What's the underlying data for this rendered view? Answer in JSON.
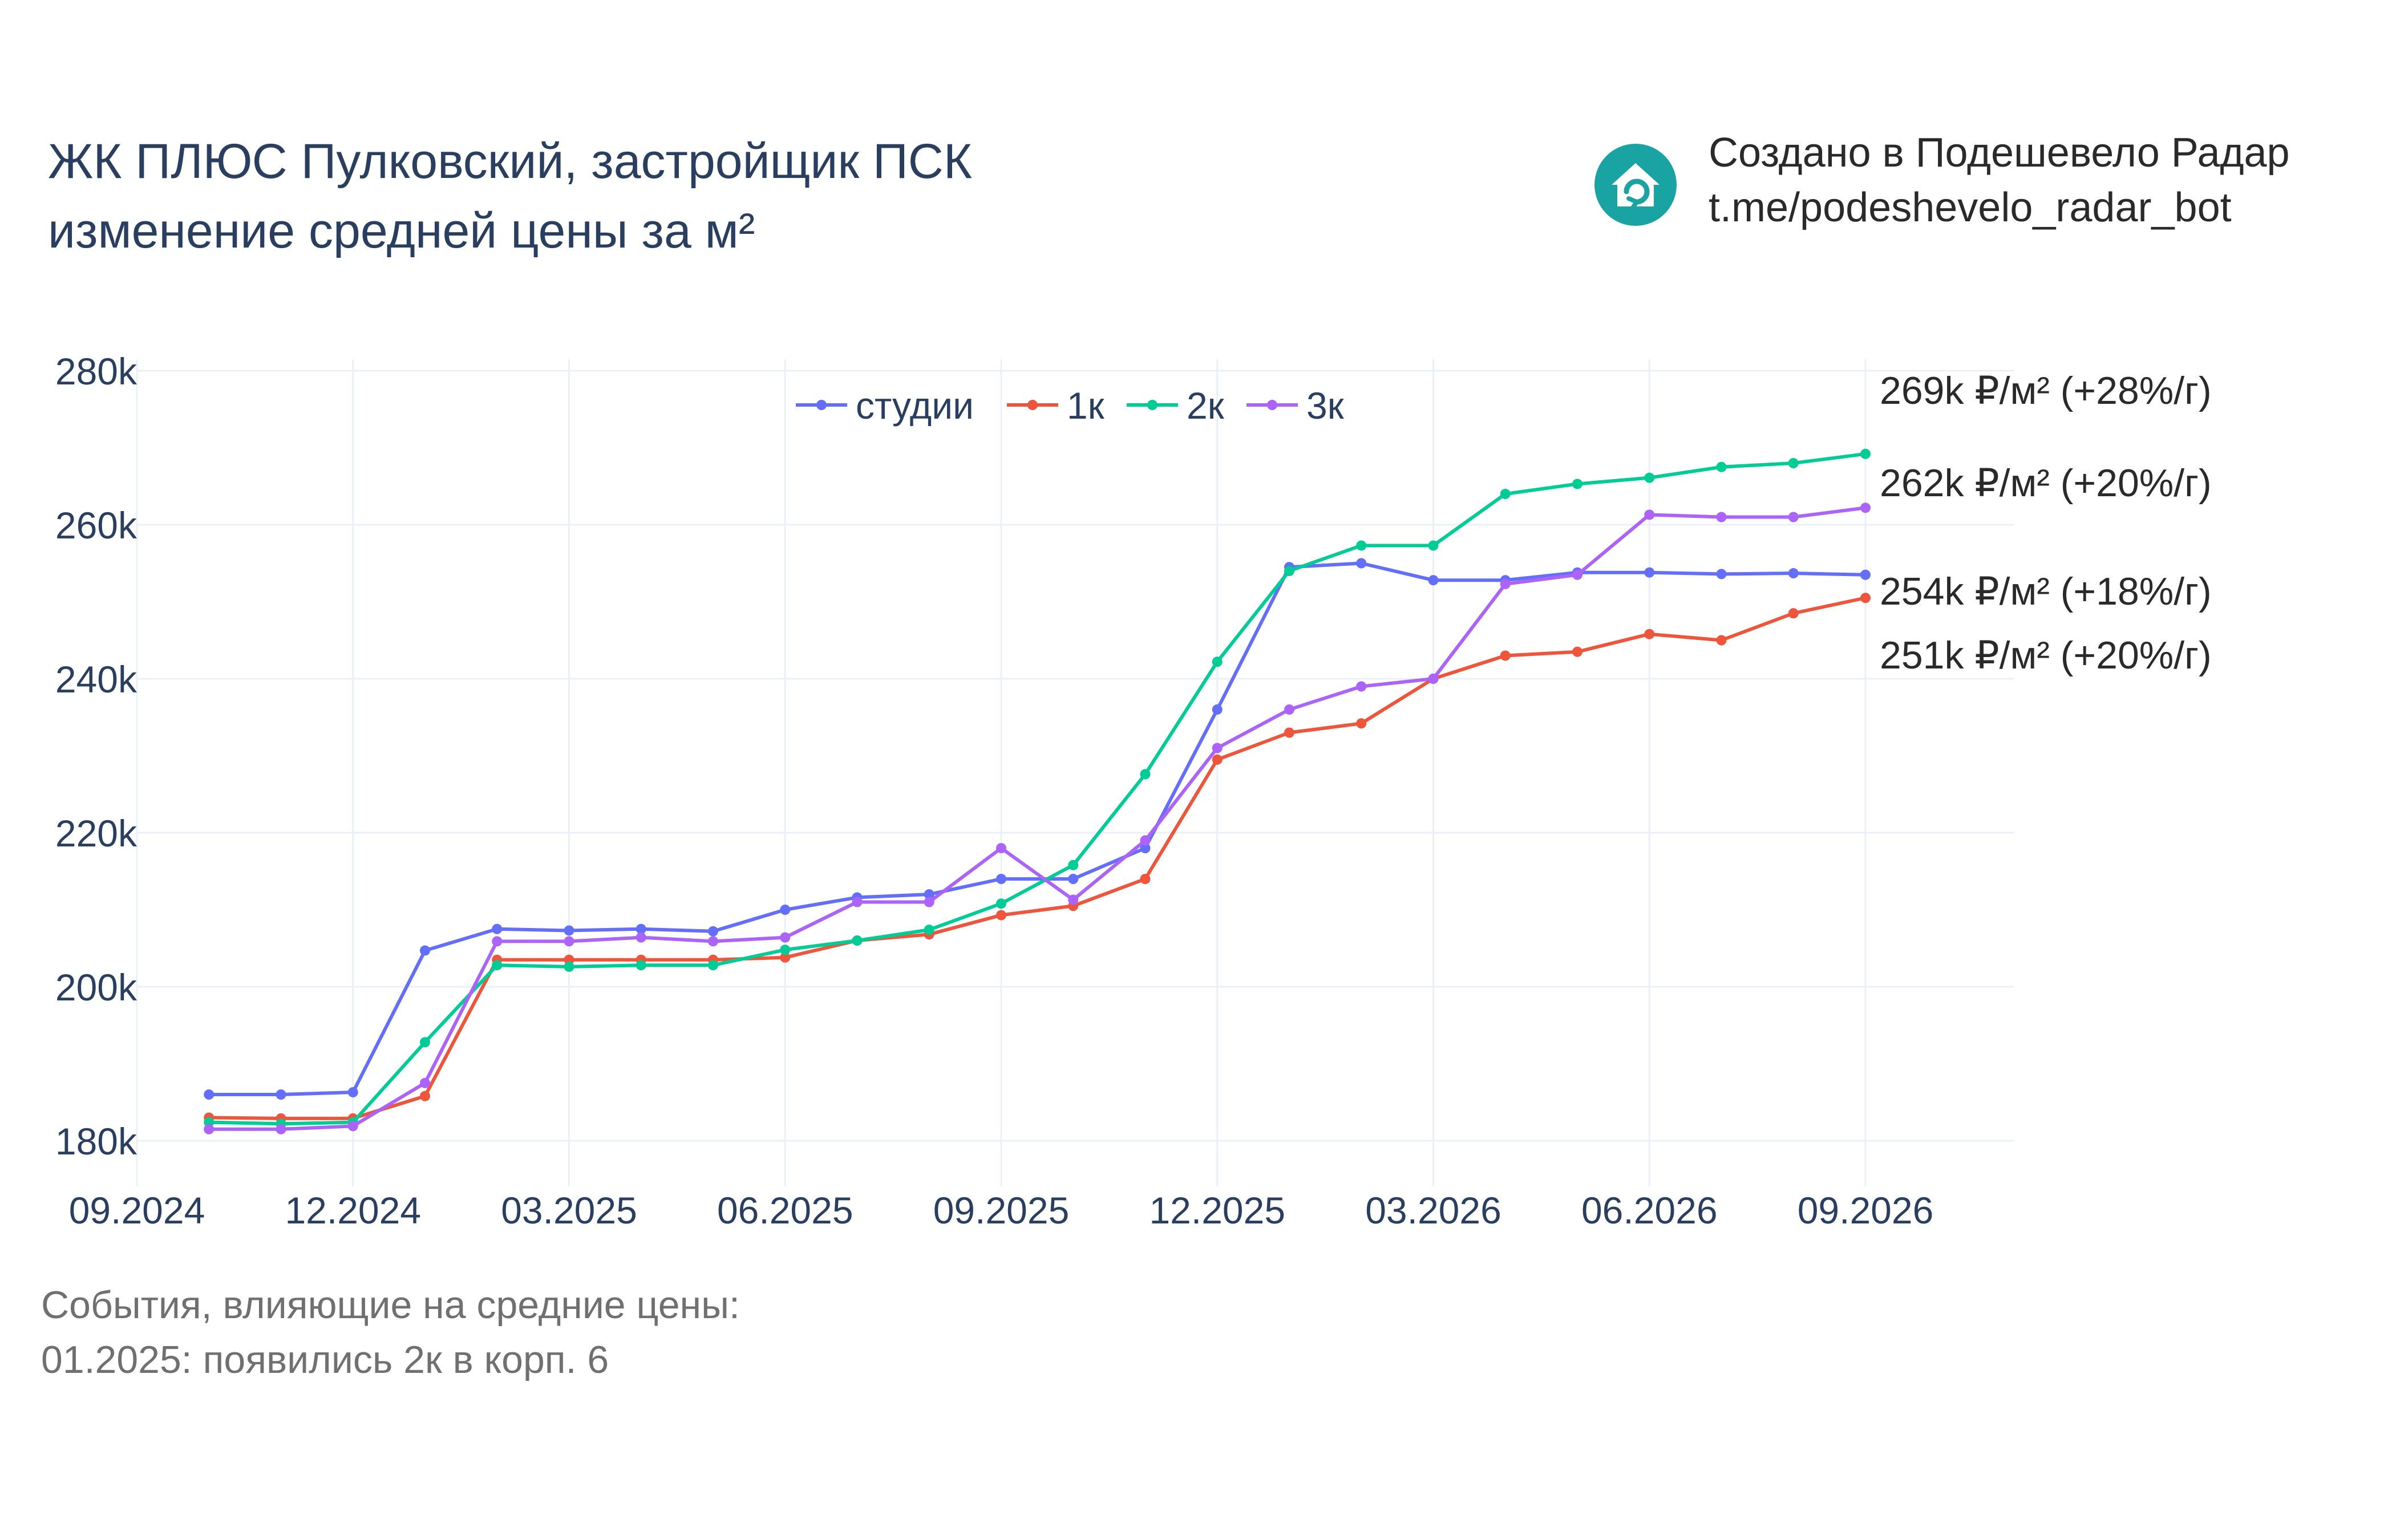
{
  "title": {
    "line1": "ЖК ПЛЮС Пулковский, застройщик ПСК",
    "line2": "изменение средней цены за м²"
  },
  "credit": {
    "line1": "Создано в Подешевело Радар",
    "line2": "t.me/podeshevelo_radar_bot",
    "logo_icon": "house-refresh-icon",
    "logo_color": "#1aa3a3"
  },
  "events": {
    "heading": "События, влияющие на средние цены:",
    "items": [
      "01.2025: появились 2к в корп. 6"
    ]
  },
  "chart_data": {
    "type": "line",
    "x": [
      "10.2024",
      "11.2024",
      "12.2024",
      "01.2025",
      "02.2025",
      "03.2025",
      "04.2025",
      "05.2025",
      "06.2025",
      "07.2025",
      "08.2025",
      "09.2025",
      "10.2025",
      "11.2025",
      "12.2025",
      "01.2026",
      "02.2026",
      "03.2026",
      "04.2026",
      "05.2026",
      "06.2026",
      "07.2026",
      "08.2026",
      "09.2026"
    ],
    "x_ticks": [
      "09.2024",
      "12.2024",
      "03.2025",
      "06.2025",
      "09.2025",
      "12.2025",
      "03.2026",
      "06.2026",
      "09.2026"
    ],
    "y_ticks": [
      "180k",
      "200k",
      "220k",
      "240k",
      "260k",
      "280k"
    ],
    "y_tick_values": [
      180000,
      200000,
      220000,
      240000,
      260000,
      280000
    ],
    "ylim": [
      176000,
      281000
    ],
    "grid": true,
    "legend_position": "top-center",
    "series": [
      {
        "name": "студии",
        "color": "#636efa",
        "values": [
          186000,
          186000,
          186300,
          204700,
          207500,
          207300,
          207500,
          207200,
          210000,
          211600,
          212000,
          214000,
          214000,
          218000,
          236000,
          254500,
          255000,
          252800,
          252800,
          253800,
          253800,
          253600,
          253700,
          253500
        ]
      },
      {
        "name": "1к",
        "color": "#ef553b",
        "values": [
          183000,
          182900,
          182900,
          185800,
          203500,
          203500,
          203500,
          203500,
          203800,
          206000,
          206800,
          209300,
          210500,
          214000,
          229500,
          233000,
          234200,
          240000,
          243000,
          243500,
          245800,
          245000,
          248500,
          250500
        ]
      },
      {
        "name": "2к",
        "color": "#00cc96",
        "values": [
          182400,
          182200,
          182400,
          192800,
          202800,
          202600,
          202800,
          202800,
          204800,
          206000,
          207400,
          210800,
          215800,
          227600,
          242200,
          254000,
          257300,
          257300,
          264000,
          265300,
          266100,
          267500,
          268000,
          269200
        ]
      },
      {
        "name": "3к",
        "color": "#ab63fa",
        "values": [
          181500,
          181500,
          181900,
          187500,
          205900,
          205900,
          206400,
          205900,
          206400,
          211000,
          211000,
          218000,
          211300,
          219000,
          231000,
          236000,
          239000,
          240000,
          252300,
          253500,
          261300,
          261000,
          261000,
          262200
        ]
      }
    ],
    "annotations": [
      {
        "text": "269k ₽/м² (+28%/г)",
        "series": "2к"
      },
      {
        "text": "262k ₽/м² (+20%/г)",
        "series": "3к"
      },
      {
        "text": "254k ₽/м² (+18%/г)",
        "series": "студии"
      },
      {
        "text": "251k ₽/м² (+20%/г)",
        "series": "1к"
      }
    ]
  }
}
